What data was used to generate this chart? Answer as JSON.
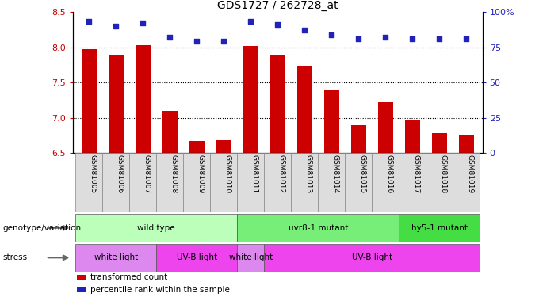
{
  "title": "GDS1727 / 262728_at",
  "samples": [
    "GSM81005",
    "GSM81006",
    "GSM81007",
    "GSM81008",
    "GSM81009",
    "GSM81010",
    "GSM81011",
    "GSM81012",
    "GSM81013",
    "GSM81014",
    "GSM81015",
    "GSM81016",
    "GSM81017",
    "GSM81018",
    "GSM81019"
  ],
  "bar_values": [
    7.97,
    7.88,
    8.03,
    7.1,
    6.67,
    6.68,
    8.02,
    7.89,
    7.74,
    7.39,
    6.89,
    7.22,
    6.97,
    6.78,
    6.76
  ],
  "dot_values": [
    93,
    90,
    92,
    82,
    79,
    79,
    93,
    91,
    87,
    84,
    81,
    82,
    81,
    81,
    81
  ],
  "bar_bottom": 6.5,
  "ylim_left": [
    6.5,
    8.5
  ],
  "ylim_right": [
    0,
    100
  ],
  "yticks_left": [
    6.5,
    7.0,
    7.5,
    8.0,
    8.5
  ],
  "yticks_right": [
    0,
    25,
    50,
    75,
    100
  ],
  "bar_color": "#cc0000",
  "dot_color": "#2222bb",
  "grid_color": "#333333",
  "tick_label_color_left": "#cc0000",
  "tick_label_color_right": "#2222bb",
  "genotype_groups": [
    {
      "label": "wild type",
      "start": 0,
      "end": 6,
      "color": "#bbffbb"
    },
    {
      "label": "uvr8-1 mutant",
      "start": 6,
      "end": 12,
      "color": "#77ee77"
    },
    {
      "label": "hy5-1 mutant",
      "start": 12,
      "end": 15,
      "color": "#44dd44"
    }
  ],
  "stress_groups": [
    {
      "label": "white light",
      "start": 0,
      "end": 3,
      "color": "#dd88ee"
    },
    {
      "label": "UV-B light",
      "start": 3,
      "end": 6,
      "color": "#ee44ee"
    },
    {
      "label": "white light",
      "start": 6,
      "end": 7,
      "color": "#dd88ee"
    },
    {
      "label": "UV-B light",
      "start": 7,
      "end": 15,
      "color": "#ee44ee"
    }
  ],
  "legend_items": [
    {
      "label": "transformed count",
      "color": "#cc0000"
    },
    {
      "label": "percentile rank within the sample",
      "color": "#2222bb"
    }
  ]
}
